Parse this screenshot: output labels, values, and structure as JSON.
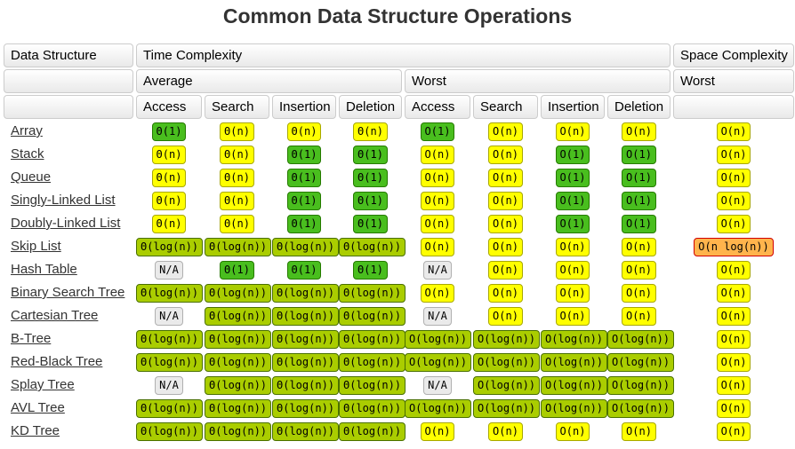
{
  "title": "Common Data Structure Operations",
  "colors": {
    "green_bg": "#49BE1E",
    "green_border": "#257A00",
    "yellow_bg": "#FFFF00",
    "yellow_border": "#A8A800",
    "yellowgreen_bg": "#AACD00",
    "yellowgreen_border": "#4A7000",
    "orange_bg": "#FFB44C",
    "orange_border": "#D10000",
    "na_bg": "#EAEAEA",
    "na_border": "#B0B0B0",
    "header_border": "#CCCCCC",
    "title_text": "#333333",
    "link_text": "#333333"
  },
  "table": {
    "header": {
      "data_structure": "Data Structure",
      "time_complexity": "Time Complexity",
      "space_complexity": "Space Complexity",
      "average": "Average",
      "worst_time": "Worst",
      "worst_space": "Worst",
      "operations": [
        "Access",
        "Search",
        "Insertion",
        "Deletion",
        "Access",
        "Search",
        "Insertion",
        "Deletion"
      ]
    },
    "rows": [
      {
        "name": "Array",
        "cells": [
          {
            "text": "Θ(1)",
            "level": "green"
          },
          {
            "text": "Θ(n)",
            "level": "yellow"
          },
          {
            "text": "Θ(n)",
            "level": "yellow"
          },
          {
            "text": "Θ(n)",
            "level": "yellow"
          },
          {
            "text": "O(1)",
            "level": "green"
          },
          {
            "text": "O(n)",
            "level": "yellow"
          },
          {
            "text": "O(n)",
            "level": "yellow"
          },
          {
            "text": "O(n)",
            "level": "yellow"
          },
          {
            "text": "O(n)",
            "level": "yellow"
          }
        ]
      },
      {
        "name": "Stack",
        "cells": [
          {
            "text": "Θ(n)",
            "level": "yellow"
          },
          {
            "text": "Θ(n)",
            "level": "yellow"
          },
          {
            "text": "Θ(1)",
            "level": "green"
          },
          {
            "text": "Θ(1)",
            "level": "green"
          },
          {
            "text": "O(n)",
            "level": "yellow"
          },
          {
            "text": "O(n)",
            "level": "yellow"
          },
          {
            "text": "O(1)",
            "level": "green"
          },
          {
            "text": "O(1)",
            "level": "green"
          },
          {
            "text": "O(n)",
            "level": "yellow"
          }
        ]
      },
      {
        "name": "Queue",
        "cells": [
          {
            "text": "Θ(n)",
            "level": "yellow"
          },
          {
            "text": "Θ(n)",
            "level": "yellow"
          },
          {
            "text": "Θ(1)",
            "level": "green"
          },
          {
            "text": "Θ(1)",
            "level": "green"
          },
          {
            "text": "O(n)",
            "level": "yellow"
          },
          {
            "text": "O(n)",
            "level": "yellow"
          },
          {
            "text": "O(1)",
            "level": "green"
          },
          {
            "text": "O(1)",
            "level": "green"
          },
          {
            "text": "O(n)",
            "level": "yellow"
          }
        ]
      },
      {
        "name": "Singly-Linked List",
        "cells": [
          {
            "text": "Θ(n)",
            "level": "yellow"
          },
          {
            "text": "Θ(n)",
            "level": "yellow"
          },
          {
            "text": "Θ(1)",
            "level": "green"
          },
          {
            "text": "Θ(1)",
            "level": "green"
          },
          {
            "text": "O(n)",
            "level": "yellow"
          },
          {
            "text": "O(n)",
            "level": "yellow"
          },
          {
            "text": "O(1)",
            "level": "green"
          },
          {
            "text": "O(1)",
            "level": "green"
          },
          {
            "text": "O(n)",
            "level": "yellow"
          }
        ]
      },
      {
        "name": "Doubly-Linked List",
        "cells": [
          {
            "text": "Θ(n)",
            "level": "yellow"
          },
          {
            "text": "Θ(n)",
            "level": "yellow"
          },
          {
            "text": "Θ(1)",
            "level": "green"
          },
          {
            "text": "Θ(1)",
            "level": "green"
          },
          {
            "text": "O(n)",
            "level": "yellow"
          },
          {
            "text": "O(n)",
            "level": "yellow"
          },
          {
            "text": "O(1)",
            "level": "green"
          },
          {
            "text": "O(1)",
            "level": "green"
          },
          {
            "text": "O(n)",
            "level": "yellow"
          }
        ]
      },
      {
        "name": "Skip List",
        "cells": [
          {
            "text": "Θ(log(n))",
            "level": "yellowgreen"
          },
          {
            "text": "Θ(log(n))",
            "level": "yellowgreen"
          },
          {
            "text": "Θ(log(n))",
            "level": "yellowgreen"
          },
          {
            "text": "Θ(log(n))",
            "level": "yellowgreen"
          },
          {
            "text": "O(n)",
            "level": "yellow"
          },
          {
            "text": "O(n)",
            "level": "yellow"
          },
          {
            "text": "O(n)",
            "level": "yellow"
          },
          {
            "text": "O(n)",
            "level": "yellow"
          },
          {
            "text": "O(n log(n))",
            "level": "orange"
          }
        ]
      },
      {
        "name": "Hash Table",
        "cells": [
          {
            "text": "N/A",
            "level": "na"
          },
          {
            "text": "Θ(1)",
            "level": "green"
          },
          {
            "text": "Θ(1)",
            "level": "green"
          },
          {
            "text": "Θ(1)",
            "level": "green"
          },
          {
            "text": "N/A",
            "level": "na"
          },
          {
            "text": "O(n)",
            "level": "yellow"
          },
          {
            "text": "O(n)",
            "level": "yellow"
          },
          {
            "text": "O(n)",
            "level": "yellow"
          },
          {
            "text": "O(n)",
            "level": "yellow"
          }
        ]
      },
      {
        "name": "Binary Search Tree",
        "cells": [
          {
            "text": "Θ(log(n))",
            "level": "yellowgreen"
          },
          {
            "text": "Θ(log(n))",
            "level": "yellowgreen"
          },
          {
            "text": "Θ(log(n))",
            "level": "yellowgreen"
          },
          {
            "text": "Θ(log(n))",
            "level": "yellowgreen"
          },
          {
            "text": "O(n)",
            "level": "yellow"
          },
          {
            "text": "O(n)",
            "level": "yellow"
          },
          {
            "text": "O(n)",
            "level": "yellow"
          },
          {
            "text": "O(n)",
            "level": "yellow"
          },
          {
            "text": "O(n)",
            "level": "yellow"
          }
        ]
      },
      {
        "name": "Cartesian Tree",
        "cells": [
          {
            "text": "N/A",
            "level": "na"
          },
          {
            "text": "Θ(log(n))",
            "level": "yellowgreen"
          },
          {
            "text": "Θ(log(n))",
            "level": "yellowgreen"
          },
          {
            "text": "Θ(log(n))",
            "level": "yellowgreen"
          },
          {
            "text": "N/A",
            "level": "na"
          },
          {
            "text": "O(n)",
            "level": "yellow"
          },
          {
            "text": "O(n)",
            "level": "yellow"
          },
          {
            "text": "O(n)",
            "level": "yellow"
          },
          {
            "text": "O(n)",
            "level": "yellow"
          }
        ]
      },
      {
        "name": "B-Tree",
        "cells": [
          {
            "text": "Θ(log(n))",
            "level": "yellowgreen"
          },
          {
            "text": "Θ(log(n))",
            "level": "yellowgreen"
          },
          {
            "text": "Θ(log(n))",
            "level": "yellowgreen"
          },
          {
            "text": "Θ(log(n))",
            "level": "yellowgreen"
          },
          {
            "text": "O(log(n))",
            "level": "yellowgreen"
          },
          {
            "text": "O(log(n))",
            "level": "yellowgreen"
          },
          {
            "text": "O(log(n))",
            "level": "yellowgreen"
          },
          {
            "text": "O(log(n))",
            "level": "yellowgreen"
          },
          {
            "text": "O(n)",
            "level": "yellow"
          }
        ]
      },
      {
        "name": "Red-Black Tree",
        "cells": [
          {
            "text": "Θ(log(n))",
            "level": "yellowgreen"
          },
          {
            "text": "Θ(log(n))",
            "level": "yellowgreen"
          },
          {
            "text": "Θ(log(n))",
            "level": "yellowgreen"
          },
          {
            "text": "Θ(log(n))",
            "level": "yellowgreen"
          },
          {
            "text": "O(log(n))",
            "level": "yellowgreen"
          },
          {
            "text": "O(log(n))",
            "level": "yellowgreen"
          },
          {
            "text": "O(log(n))",
            "level": "yellowgreen"
          },
          {
            "text": "O(log(n))",
            "level": "yellowgreen"
          },
          {
            "text": "O(n)",
            "level": "yellow"
          }
        ]
      },
      {
        "name": "Splay Tree",
        "cells": [
          {
            "text": "N/A",
            "level": "na"
          },
          {
            "text": "Θ(log(n))",
            "level": "yellowgreen"
          },
          {
            "text": "Θ(log(n))",
            "level": "yellowgreen"
          },
          {
            "text": "Θ(log(n))",
            "level": "yellowgreen"
          },
          {
            "text": "N/A",
            "level": "na"
          },
          {
            "text": "O(log(n))",
            "level": "yellowgreen"
          },
          {
            "text": "O(log(n))",
            "level": "yellowgreen"
          },
          {
            "text": "O(log(n))",
            "level": "yellowgreen"
          },
          {
            "text": "O(n)",
            "level": "yellow"
          }
        ]
      },
      {
        "name": "AVL Tree",
        "cells": [
          {
            "text": "Θ(log(n))",
            "level": "yellowgreen"
          },
          {
            "text": "Θ(log(n))",
            "level": "yellowgreen"
          },
          {
            "text": "Θ(log(n))",
            "level": "yellowgreen"
          },
          {
            "text": "Θ(log(n))",
            "level": "yellowgreen"
          },
          {
            "text": "O(log(n))",
            "level": "yellowgreen"
          },
          {
            "text": "O(log(n))",
            "level": "yellowgreen"
          },
          {
            "text": "O(log(n))",
            "level": "yellowgreen"
          },
          {
            "text": "O(log(n))",
            "level": "yellowgreen"
          },
          {
            "text": "O(n)",
            "level": "yellow"
          }
        ]
      },
      {
        "name": "KD Tree",
        "cells": [
          {
            "text": "Θ(log(n))",
            "level": "yellowgreen"
          },
          {
            "text": "Θ(log(n))",
            "level": "yellowgreen"
          },
          {
            "text": "Θ(log(n))",
            "level": "yellowgreen"
          },
          {
            "text": "Θ(log(n))",
            "level": "yellowgreen"
          },
          {
            "text": "O(n)",
            "level": "yellow"
          },
          {
            "text": "O(n)",
            "level": "yellow"
          },
          {
            "text": "O(n)",
            "level": "yellow"
          },
          {
            "text": "O(n)",
            "level": "yellow"
          },
          {
            "text": "O(n)",
            "level": "yellow"
          }
        ]
      }
    ]
  }
}
